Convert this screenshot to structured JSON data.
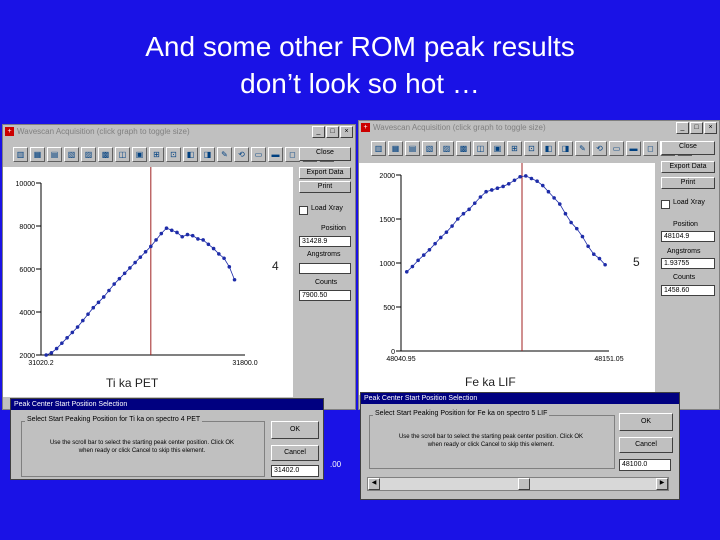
{
  "slide": {
    "title_line1": "And some other ROM peak results",
    "title_line2": "don’t look so hot …"
  },
  "left_window": {
    "title": "Wavescan Acquisition (click graph to toggle size)",
    "buttons": {
      "close": "Close",
      "export": "Export Data",
      "print": "Print"
    },
    "load_xray": "Load Xray",
    "position_label": "Position",
    "position_value": "31428.9",
    "angstroms_label": "Angstroms",
    "angstroms_value": "",
    "counts_label": "Counts",
    "counts_value": "7900.50",
    "element_label": "Ti ka PET",
    "spectro_number": "4",
    "chart_data": {
      "type": "scatter",
      "x_ticks": [
        "31020.2",
        "31800.0"
      ],
      "y_ticks": [
        "2000",
        "4000",
        "6000",
        "8000",
        "10000"
      ],
      "ylim": [
        2000,
        10000
      ],
      "xlim": [
        31020.2,
        31800.0
      ],
      "peak_line_x": 31440,
      "x": [
        31040,
        31060,
        31080,
        31100,
        31120,
        31140,
        31160,
        31180,
        31200,
        31220,
        31240,
        31260,
        31280,
        31300,
        31320,
        31340,
        31360,
        31380,
        31400,
        31420,
        31440,
        31460,
        31480,
        31500,
        31520,
        31540,
        31560,
        31580,
        31600,
        31620,
        31640,
        31660,
        31680,
        31700,
        31720,
        31740,
        31760
      ],
      "y": [
        2000,
        2100,
        2300,
        2550,
        2800,
        3050,
        3300,
        3600,
        3900,
        4200,
        4450,
        4700,
        5000,
        5300,
        5550,
        5800,
        6050,
        6300,
        6550,
        6800,
        7050,
        7350,
        7650,
        7900,
        7800,
        7700,
        7500,
        7600,
        7550,
        7400,
        7350,
        7150,
        6950,
        6700,
        6500,
        6100,
        5500
      ]
    }
  },
  "right_window": {
    "title": "Wavescan Acquisition (click graph to toggle size)",
    "buttons": {
      "close": "Close",
      "export": "Export Data",
      "print": "Print"
    },
    "load_xray": "Load Xray",
    "position_label": "Position",
    "position_value": "48104.9",
    "angstroms_label": "Angstroms",
    "angstroms_value": "1.93755",
    "counts_label": "Counts",
    "counts_value": "1458.60",
    "element_label": "Fe ka LIF",
    "spectro_number": "5",
    "chart_data": {
      "type": "scatter",
      "x_ticks": [
        "48040.95",
        "48151.05"
      ],
      "y_ticks": [
        "0",
        "500",
        "1000",
        "1500",
        "2000"
      ],
      "ylim": [
        0,
        2000
      ],
      "xlim": [
        48040.95,
        48151.05
      ],
      "peak_line_x": 48105,
      "x": [
        48044,
        48047,
        48050,
        48053,
        48056,
        48059,
        48062,
        48065,
        48068,
        48071,
        48074,
        48077,
        48080,
        48083,
        48086,
        48089,
        48092,
        48095,
        48098,
        48101,
        48104,
        48107,
        48110,
        48113,
        48116,
        48119,
        48122,
        48125,
        48128,
        48131,
        48134,
        48137,
        48140,
        48143,
        48146,
        48149
      ],
      "y": [
        900,
        960,
        1030,
        1090,
        1150,
        1220,
        1290,
        1350,
        1420,
        1500,
        1560,
        1610,
        1680,
        1750,
        1810,
        1830,
        1850,
        1870,
        1900,
        1940,
        1980,
        1990,
        1960,
        1930,
        1880,
        1810,
        1740,
        1670,
        1560,
        1460,
        1390,
        1300,
        1190,
        1100,
        1050,
        980
      ]
    }
  },
  "left_dialog": {
    "title": "Peak Center Start Position Selection",
    "group_label": "Select Start Peaking Position for Ti ka on spectro  4 PET",
    "text_line1": "Use the scroll bar to select the starting peak center position. Click OK",
    "text_line2": "when ready or click Cancel to skip this element.",
    "ok": "OK",
    "cancel": "Cancel",
    "value": "31402.0",
    "side_values": [
      ".00"
    ]
  },
  "right_dialog": {
    "title": "Peak Center Start Position Selection",
    "group_label": "Select Start Peaking Position for Fe ka on spectro  5 LIF",
    "text_line1": "Use the scroll bar to select the starting peak center position. Click OK",
    "text_line2": "when ready or click Cancel to skip this element.",
    "ok": "OK",
    "cancel": "Cancel",
    "value": "48100.0"
  },
  "tools": [
    "▥",
    "▦",
    "▤",
    "▧",
    "▨",
    "▩",
    "◫",
    "▣",
    "⊞",
    "⊡",
    "◧",
    "◨",
    "✎",
    "⟲",
    "▭",
    "▬",
    "◻",
    "◼",
    "✐"
  ],
  "colors": {
    "slide_bg": "#1a12e6",
    "plot_dots": "#1e2ca8",
    "peak_line": "#a02020"
  }
}
